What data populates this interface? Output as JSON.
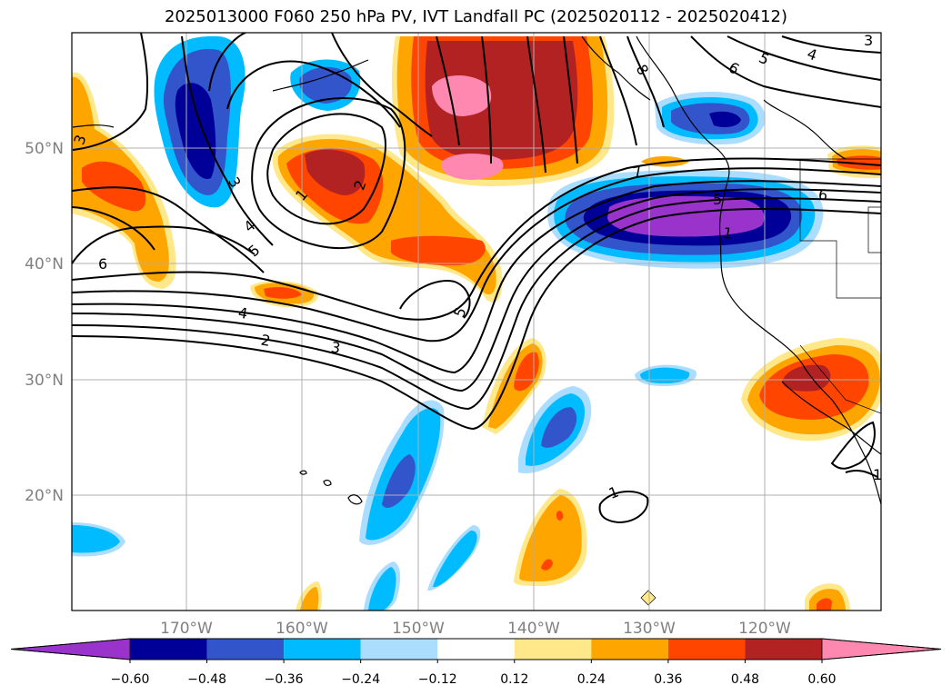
{
  "title": "2025013000 F060 250 hPa PV, IVT Landfall PC (2025020112 - 2025020412)",
  "lat_labels": [
    "50°N",
    "40°N",
    "30°N",
    "20°N"
  ],
  "lon_labels": [
    "170°W",
    "160°W",
    "150°W",
    "140°W",
    "130°W",
    "120°W"
  ],
  "colorbar": {
    "tick_labels": [
      "−0.60",
      "−0.48",
      "−0.36",
      "−0.24",
      "−0.12",
      "0.12",
      "0.24",
      "0.36",
      "0.48",
      "0.60"
    ],
    "colors": [
      "#9933cc",
      "#000099",
      "#3355cc",
      "#00bbff",
      "#aaddff",
      "#ffffff",
      "#ffe88a",
      "#ffa500",
      "#ff4500",
      "#b22222",
      "#ff88b0"
    ]
  },
  "contour_labels": [
    "8",
    "6",
    "5",
    "4",
    "3",
    "3",
    "3",
    "1",
    "2",
    "4",
    "5",
    "6",
    "4",
    "2",
    "3",
    "5",
    "7",
    "6",
    "5",
    "1",
    "1",
    "1"
  ],
  "colors": {
    "label_gray": "#808080",
    "grid": "#b0b0b0"
  }
}
